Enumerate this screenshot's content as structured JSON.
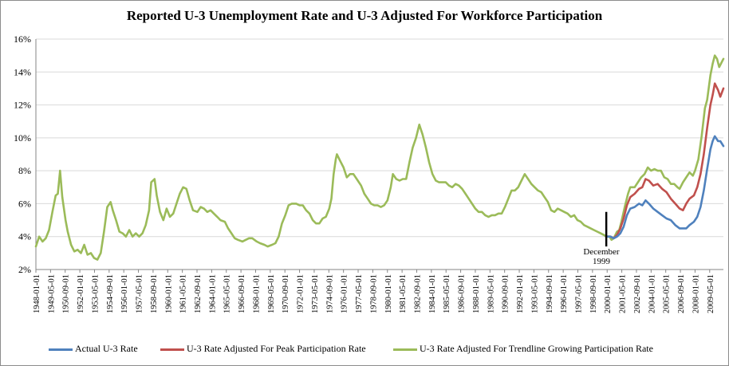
{
  "chart_data": {
    "type": "line",
    "title": "Reported U-3 Unemployment Rate and U-3 Adjusted For Workforce Participation",
    "ylim": [
      2,
      16
    ],
    "yticks": [
      "2%",
      "4%",
      "6%",
      "8%",
      "10%",
      "12%",
      "14%",
      "16%"
    ],
    "ytick_values": [
      2,
      4,
      6,
      8,
      10,
      12,
      14,
      16
    ],
    "xlim": [
      1948.0,
      2010.583
    ],
    "x_tick_labels": [
      "1948-01-01",
      "1949-05-01",
      "1950-09-01",
      "1952-01-01",
      "1953-05-01",
      "1954-09-01",
      "1956-01-01",
      "1957-05-01",
      "1958-09-01",
      "1960-01-01",
      "1961-05-01",
      "1962-09-01",
      "1964-01-01",
      "1965-05-01",
      "1966-09-01",
      "1968-01-01",
      "1969-05-01",
      "1970-09-01",
      "1972-01-01",
      "1973-05-01",
      "1974-09-01",
      "1976-01-01",
      "1977-05-01",
      "1978-09-01",
      "1980-01-01",
      "1981-05-01",
      "1982-09-01",
      "1984-01-01",
      "1985-05-01",
      "1986-09-01",
      "1988-01-01",
      "1989-05-01",
      "1990-09-01",
      "1992-01-01",
      "1993-05-01",
      "1994-09-01",
      "1996-01-01",
      "1997-05-01",
      "1998-09-01",
      "2000-01-01",
      "2001-05-01",
      "2002-09-01",
      "2004-01-01",
      "2005-05-01",
      "2006-09-01",
      "2008-01-01",
      "2009-05-01"
    ],
    "grid": "horizontal",
    "legend_position": "bottom",
    "annotation": {
      "text_line1": "December",
      "text_line2": "1999",
      "x": 1999.92,
      "marker_y_range": [
        3.4,
        5.5
      ]
    },
    "series": [
      {
        "name": "Actual U-3 Rate",
        "color": "#4f81bd",
        "points": [
          [
            1999.92,
            4.0
          ],
          [
            2000.3,
            4.0
          ],
          [
            2000.6,
            3.9
          ],
          [
            2000.9,
            4.0
          ],
          [
            2001.2,
            4.2
          ],
          [
            2001.5,
            4.6
          ],
          [
            2001.8,
            5.3
          ],
          [
            2002.1,
            5.7
          ],
          [
            2002.5,
            5.8
          ],
          [
            2002.9,
            6.0
          ],
          [
            2003.2,
            5.9
          ],
          [
            2003.5,
            6.2
          ],
          [
            2003.8,
            6.0
          ],
          [
            2004.2,
            5.7
          ],
          [
            2004.6,
            5.5
          ],
          [
            2005.0,
            5.3
          ],
          [
            2005.4,
            5.1
          ],
          [
            2005.8,
            5.0
          ],
          [
            2006.2,
            4.7
          ],
          [
            2006.6,
            4.5
          ],
          [
            2006.9,
            4.5
          ],
          [
            2007.2,
            4.5
          ],
          [
            2007.5,
            4.7
          ],
          [
            2007.9,
            4.9
          ],
          [
            2008.2,
            5.2
          ],
          [
            2008.5,
            5.8
          ],
          [
            2008.8,
            6.8
          ],
          [
            2009.1,
            8.1
          ],
          [
            2009.4,
            9.3
          ],
          [
            2009.6,
            9.8
          ],
          [
            2009.8,
            10.1
          ],
          [
            2010.1,
            9.8
          ],
          [
            2010.3,
            9.8
          ],
          [
            2010.583,
            9.5
          ]
        ]
      },
      {
        "name": "U-3 Rate Adjusted For Peak Participation Rate",
        "color": "#c0504d",
        "points": [
          [
            1999.92,
            4.0
          ],
          [
            2000.3,
            4.0
          ],
          [
            2000.6,
            3.9
          ],
          [
            2000.9,
            4.1
          ],
          [
            2001.2,
            4.5
          ],
          [
            2001.5,
            5.1
          ],
          [
            2001.8,
            5.9
          ],
          [
            2002.1,
            6.4
          ],
          [
            2002.5,
            6.6
          ],
          [
            2002.9,
            6.9
          ],
          [
            2003.2,
            7.0
          ],
          [
            2003.5,
            7.5
          ],
          [
            2003.8,
            7.4
          ],
          [
            2004.2,
            7.1
          ],
          [
            2004.6,
            7.2
          ],
          [
            2005.0,
            6.9
          ],
          [
            2005.4,
            6.7
          ],
          [
            2005.8,
            6.3
          ],
          [
            2006.2,
            6.0
          ],
          [
            2006.6,
            5.7
          ],
          [
            2006.9,
            5.6
          ],
          [
            2007.2,
            6.0
          ],
          [
            2007.5,
            6.3
          ],
          [
            2007.9,
            6.5
          ],
          [
            2008.2,
            7.0
          ],
          [
            2008.5,
            7.8
          ],
          [
            2008.8,
            9.0
          ],
          [
            2009.1,
            10.6
          ],
          [
            2009.4,
            12.0
          ],
          [
            2009.6,
            12.6
          ],
          [
            2009.8,
            13.3
          ],
          [
            2010.1,
            12.9
          ],
          [
            2010.3,
            12.5
          ],
          [
            2010.583,
            13.0
          ]
        ]
      },
      {
        "name": "U-3 Rate Adjusted For Trendline Growing Participation Rate",
        "color": "#9bbb59",
        "points": [
          [
            1948.0,
            3.4
          ],
          [
            1948.3,
            4.0
          ],
          [
            1948.6,
            3.7
          ],
          [
            1948.9,
            3.9
          ],
          [
            1949.2,
            4.4
          ],
          [
            1949.5,
            5.5
          ],
          [
            1949.8,
            6.5
          ],
          [
            1950.0,
            6.6
          ],
          [
            1950.2,
            8.0
          ],
          [
            1950.4,
            6.4
          ],
          [
            1950.7,
            5.0
          ],
          [
            1950.9,
            4.3
          ],
          [
            1951.2,
            3.5
          ],
          [
            1951.5,
            3.1
          ],
          [
            1951.8,
            3.2
          ],
          [
            1952.1,
            3.0
          ],
          [
            1952.4,
            3.5
          ],
          [
            1952.7,
            2.9
          ],
          [
            1953.0,
            3.0
          ],
          [
            1953.3,
            2.7
          ],
          [
            1953.6,
            2.6
          ],
          [
            1953.9,
            3.0
          ],
          [
            1954.2,
            4.3
          ],
          [
            1954.5,
            5.8
          ],
          [
            1954.8,
            6.1
          ],
          [
            1955.0,
            5.6
          ],
          [
            1955.3,
            5.0
          ],
          [
            1955.6,
            4.3
          ],
          [
            1955.9,
            4.2
          ],
          [
            1956.2,
            4.0
          ],
          [
            1956.5,
            4.4
          ],
          [
            1956.8,
            4.0
          ],
          [
            1957.1,
            4.2
          ],
          [
            1957.4,
            4.0
          ],
          [
            1957.7,
            4.2
          ],
          [
            1958.0,
            4.7
          ],
          [
            1958.3,
            5.6
          ],
          [
            1958.5,
            7.3
          ],
          [
            1958.8,
            7.5
          ],
          [
            1959.0,
            6.5
          ],
          [
            1959.3,
            5.5
          ],
          [
            1959.6,
            5.0
          ],
          [
            1959.9,
            5.7
          ],
          [
            1960.2,
            5.2
          ],
          [
            1960.5,
            5.4
          ],
          [
            1960.8,
            6.0
          ],
          [
            1961.1,
            6.6
          ],
          [
            1961.4,
            7.0
          ],
          [
            1961.7,
            6.9
          ],
          [
            1962.0,
            6.2
          ],
          [
            1962.3,
            5.6
          ],
          [
            1962.7,
            5.5
          ],
          [
            1963.0,
            5.8
          ],
          [
            1963.3,
            5.7
          ],
          [
            1963.6,
            5.5
          ],
          [
            1963.9,
            5.6
          ],
          [
            1964.2,
            5.4
          ],
          [
            1964.5,
            5.2
          ],
          [
            1964.8,
            5.0
          ],
          [
            1965.2,
            4.9
          ],
          [
            1965.5,
            4.5
          ],
          [
            1965.8,
            4.2
          ],
          [
            1966.1,
            3.9
          ],
          [
            1966.4,
            3.8
          ],
          [
            1966.8,
            3.7
          ],
          [
            1967.1,
            3.8
          ],
          [
            1967.4,
            3.9
          ],
          [
            1967.7,
            3.9
          ],
          [
            1968.1,
            3.7
          ],
          [
            1968.4,
            3.6
          ],
          [
            1968.8,
            3.5
          ],
          [
            1969.1,
            3.4
          ],
          [
            1969.5,
            3.5
          ],
          [
            1969.8,
            3.6
          ],
          [
            1970.1,
            4.0
          ],
          [
            1970.4,
            4.8
          ],
          [
            1970.7,
            5.3
          ],
          [
            1971.0,
            5.9
          ],
          [
            1971.3,
            6.0
          ],
          [
            1971.7,
            6.0
          ],
          [
            1972.0,
            5.9
          ],
          [
            1972.3,
            5.9
          ],
          [
            1972.6,
            5.6
          ],
          [
            1972.9,
            5.4
          ],
          [
            1973.2,
            5.0
          ],
          [
            1973.5,
            4.8
          ],
          [
            1973.8,
            4.8
          ],
          [
            1974.1,
            5.1
          ],
          [
            1974.4,
            5.2
          ],
          [
            1974.7,
            5.7
          ],
          [
            1974.9,
            6.3
          ],
          [
            1975.1,
            7.8
          ],
          [
            1975.3,
            8.7
          ],
          [
            1975.4,
            9.0
          ],
          [
            1975.7,
            8.6
          ],
          [
            1976.0,
            8.2
          ],
          [
            1976.3,
            7.6
          ],
          [
            1976.6,
            7.8
          ],
          [
            1976.9,
            7.8
          ],
          [
            1977.3,
            7.4
          ],
          [
            1977.6,
            7.1
          ],
          [
            1977.9,
            6.6
          ],
          [
            1978.2,
            6.3
          ],
          [
            1978.5,
            6.0
          ],
          [
            1978.8,
            5.9
          ],
          [
            1979.1,
            5.9
          ],
          [
            1979.4,
            5.8
          ],
          [
            1979.7,
            5.9
          ],
          [
            1980.0,
            6.2
          ],
          [
            1980.3,
            7.0
          ],
          [
            1980.5,
            7.8
          ],
          [
            1980.8,
            7.5
          ],
          [
            1981.1,
            7.4
          ],
          [
            1981.4,
            7.5
          ],
          [
            1981.7,
            7.5
          ],
          [
            1982.0,
            8.5
          ],
          [
            1982.3,
            9.4
          ],
          [
            1982.6,
            10.0
          ],
          [
            1982.9,
            10.8
          ],
          [
            1983.2,
            10.2
          ],
          [
            1983.5,
            9.4
          ],
          [
            1983.8,
            8.5
          ],
          [
            1984.1,
            7.8
          ],
          [
            1984.4,
            7.4
          ],
          [
            1984.7,
            7.3
          ],
          [
            1985.0,
            7.3
          ],
          [
            1985.3,
            7.3
          ],
          [
            1985.6,
            7.1
          ],
          [
            1985.9,
            7.0
          ],
          [
            1986.2,
            7.2
          ],
          [
            1986.5,
            7.1
          ],
          [
            1986.8,
            6.9
          ],
          [
            1987.1,
            6.6
          ],
          [
            1987.4,
            6.3
          ],
          [
            1987.7,
            6.0
          ],
          [
            1988.0,
            5.7
          ],
          [
            1988.3,
            5.5
          ],
          [
            1988.6,
            5.5
          ],
          [
            1988.9,
            5.3
          ],
          [
            1989.2,
            5.2
          ],
          [
            1989.5,
            5.3
          ],
          [
            1989.8,
            5.3
          ],
          [
            1990.1,
            5.4
          ],
          [
            1990.4,
            5.4
          ],
          [
            1990.7,
            5.8
          ],
          [
            1991.0,
            6.3
          ],
          [
            1991.3,
            6.8
          ],
          [
            1991.6,
            6.8
          ],
          [
            1991.9,
            7.0
          ],
          [
            1992.2,
            7.4
          ],
          [
            1992.5,
            7.8
          ],
          [
            1992.8,
            7.5
          ],
          [
            1993.1,
            7.2
          ],
          [
            1993.4,
            7.0
          ],
          [
            1993.7,
            6.8
          ],
          [
            1994.0,
            6.7
          ],
          [
            1994.3,
            6.4
          ],
          [
            1994.6,
            6.1
          ],
          [
            1994.9,
            5.6
          ],
          [
            1995.2,
            5.5
          ],
          [
            1995.5,
            5.7
          ],
          [
            1995.8,
            5.6
          ],
          [
            1996.1,
            5.5
          ],
          [
            1996.4,
            5.4
          ],
          [
            1996.7,
            5.2
          ],
          [
            1997.0,
            5.3
          ],
          [
            1997.3,
            5.0
          ],
          [
            1997.6,
            4.9
          ],
          [
            1997.9,
            4.7
          ],
          [
            1998.2,
            4.6
          ],
          [
            1998.5,
            4.5
          ],
          [
            1998.8,
            4.4
          ],
          [
            1999.1,
            4.3
          ],
          [
            1999.4,
            4.2
          ],
          [
            1999.7,
            4.1
          ],
          [
            1999.92,
            4.0
          ],
          [
            2000.2,
            4.0
          ],
          [
            2000.4,
            3.8
          ],
          [
            2000.6,
            3.9
          ],
          [
            2000.9,
            4.3
          ],
          [
            2001.1,
            4.4
          ],
          [
            2001.3,
            4.9
          ],
          [
            2001.6,
            5.8
          ],
          [
            2001.9,
            6.6
          ],
          [
            2002.1,
            7.0
          ],
          [
            2002.5,
            7.0
          ],
          [
            2002.8,
            7.3
          ],
          [
            2003.1,
            7.6
          ],
          [
            2003.4,
            7.8
          ],
          [
            2003.7,
            8.2
          ],
          [
            2004.0,
            8.0
          ],
          [
            2004.3,
            8.1
          ],
          [
            2004.6,
            8.0
          ],
          [
            2004.9,
            8.0
          ],
          [
            2005.2,
            7.6
          ],
          [
            2005.5,
            7.5
          ],
          [
            2005.8,
            7.2
          ],
          [
            2006.1,
            7.2
          ],
          [
            2006.4,
            7.0
          ],
          [
            2006.6,
            6.9
          ],
          [
            2006.9,
            7.3
          ],
          [
            2007.2,
            7.6
          ],
          [
            2007.5,
            7.9
          ],
          [
            2007.8,
            7.7
          ],
          [
            2008.0,
            8.0
          ],
          [
            2008.3,
            8.7
          ],
          [
            2008.6,
            10.1
          ],
          [
            2008.9,
            11.8
          ],
          [
            2009.1,
            12.3
          ],
          [
            2009.4,
            13.8
          ],
          [
            2009.6,
            14.5
          ],
          [
            2009.8,
            15.0
          ],
          [
            2010.0,
            14.8
          ],
          [
            2010.2,
            14.3
          ],
          [
            2010.583,
            14.8
          ]
        ]
      }
    ]
  }
}
